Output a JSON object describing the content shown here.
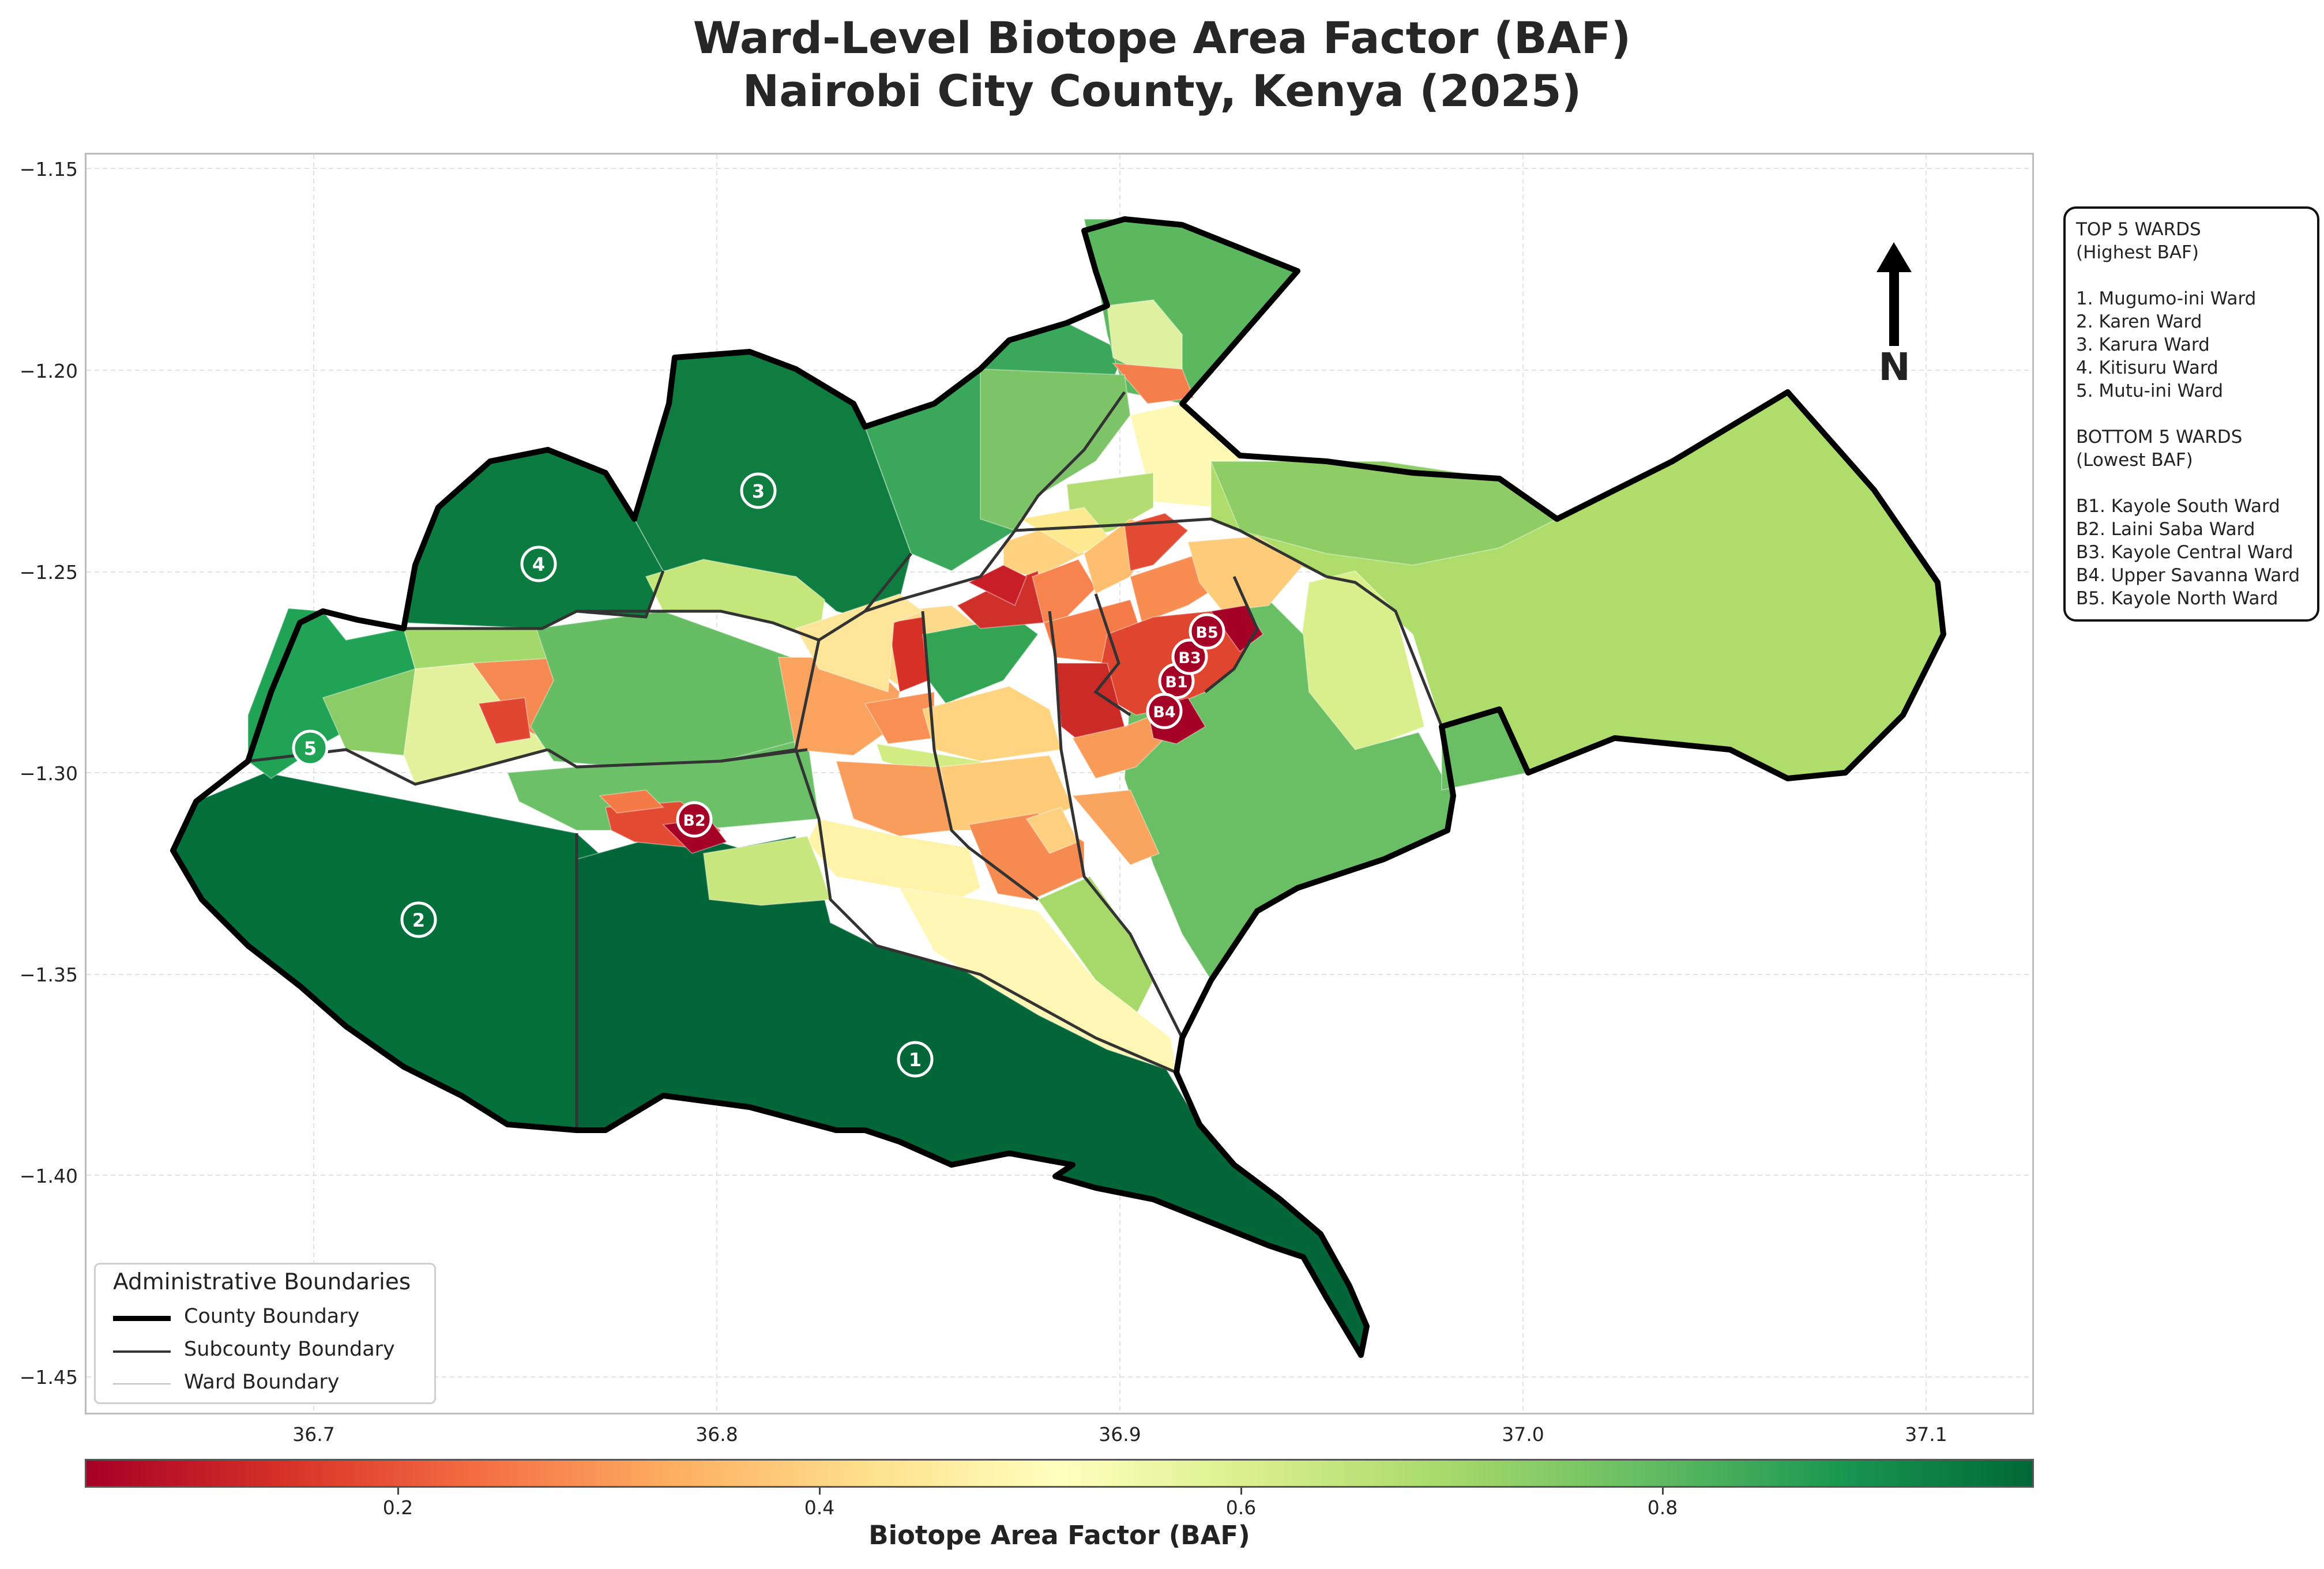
{
  "title_line1": "Ward-Level Biotope Area Factor (BAF)",
  "title_line2": "Nairobi City County, Kenya (2025)",
  "axes": {
    "x_ticks": [
      "36.7",
      "36.8",
      "36.9",
      "37.0",
      "37.1"
    ],
    "y_ticks": [
      "−1.15",
      "−1.20",
      "−1.25",
      "−1.30",
      "−1.35",
      "−1.40",
      "−1.45"
    ]
  },
  "north_arrow": {
    "label": "N",
    "icon": "north-arrow-icon"
  },
  "rankings": {
    "top_heading": "TOP 5 WARDS",
    "top_subheading": "(Highest BAF)",
    "top_wards": [
      "1. Mugumo-ini Ward",
      "2. Karen Ward",
      "3. Karura Ward",
      "4. Kitisuru Ward",
      "5. Mutu-ini Ward"
    ],
    "bottom_heading": "BOTTOM 5 WARDS",
    "bottom_subheading": "(Lowest BAF)",
    "bottom_wards": [
      "B1. Kayole South Ward",
      "B2. Laini Saba Ward",
      "B3. Kayole Central Ward",
      "B4. Upper Savanna Ward",
      "B5. Kayole North Ward"
    ]
  },
  "markers": {
    "top": [
      "1",
      "2",
      "3",
      "4",
      "5"
    ],
    "bottom": [
      "B1",
      "B2",
      "B3",
      "B4",
      "B5"
    ]
  },
  "legend": {
    "title": "Administrative Boundaries",
    "items": [
      {
        "label": "County Boundary",
        "color": "#000000"
      },
      {
        "label": "Subcounty Boundary",
        "color": "#333333"
      },
      {
        "label": "Ward Boundary",
        "color": "#bbbbbb"
      }
    ]
  },
  "colorbar": {
    "label": "Biotope Area Factor (BAF)",
    "ticks": [
      "0.2",
      "0.4",
      "0.6",
      "0.8"
    ],
    "colormap": [
      "#a50026",
      "#d73027",
      "#f46d43",
      "#fdae61",
      "#fee08b",
      "#ffffbf",
      "#d9ef8b",
      "#a6d96a",
      "#66bd63",
      "#1a9850",
      "#006837"
    ]
  }
}
